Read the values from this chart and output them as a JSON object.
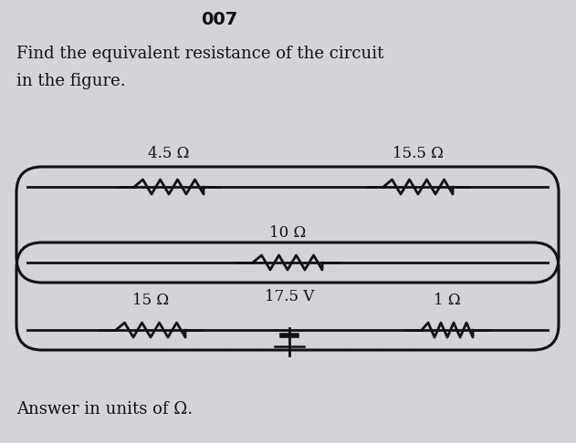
{
  "title": "007",
  "problem_line1": "Find the equivalent resistance of the circuit",
  "problem_line2": "in the figure.",
  "answer_text": "Answer in units of Ω.",
  "bg_color": "#d4d4d8",
  "wire_color": "#111111",
  "text_color": "#111111",
  "res_labels": [
    "4.5 Ω",
    "15.5 Ω",
    "10 Ω",
    "15 Ω",
    "1 Ω"
  ],
  "bat_label": "17.5 V",
  "fig_width": 6.31,
  "fig_height": 4.86,
  "dpi": 100
}
